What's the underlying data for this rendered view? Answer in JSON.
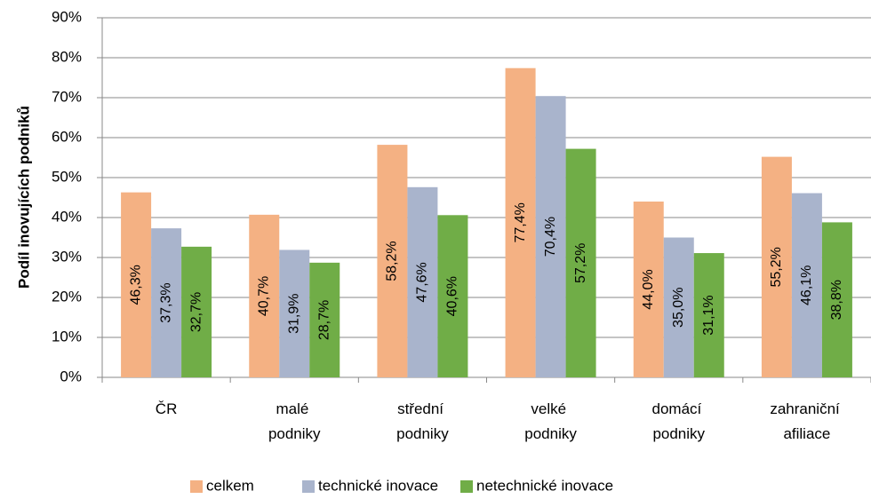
{
  "chart_data": {
    "type": "bar",
    "y_label": "Podíl inovujících podniků",
    "categories": [
      "ČR",
      "malé podniky",
      "střední podniky",
      "velké podniky",
      "domácí podniky",
      "zahraniční afiliace"
    ],
    "series": [
      {
        "name": "celkem",
        "color": "#f4b183",
        "values": [
          46.3,
          40.7,
          58.2,
          77.4,
          44.0,
          55.2
        ],
        "value_labels": [
          "46,3%",
          "40,7%",
          "58,2%",
          "77,4%",
          "44,0%",
          "55,2%"
        ]
      },
      {
        "name": "technické inovace",
        "color": "#a9b4cc",
        "values": [
          37.3,
          31.9,
          47.6,
          70.4,
          35.0,
          46.1
        ],
        "value_labels": [
          "37,3%",
          "31,9%",
          "47,6%",
          "70,4%",
          "35,0%",
          "46,1%"
        ]
      },
      {
        "name": "netechnické inovace",
        "color": "#70ad47",
        "values": [
          32.7,
          28.7,
          40.6,
          57.2,
          31.1,
          38.8
        ],
        "value_labels": [
          "32,7%",
          "28,7%",
          "40,6%",
          "57,2%",
          "31,1%",
          "38,8%"
        ]
      }
    ],
    "ylim": [
      0,
      90
    ],
    "yticks": [
      {
        "value": 0,
        "label": "0%"
      },
      {
        "value": 10,
        "label": "10%"
      },
      {
        "value": 20,
        "label": "20%"
      },
      {
        "value": 30,
        "label": "30%"
      },
      {
        "value": 40,
        "label": "40%"
      },
      {
        "value": 50,
        "label": "50%"
      },
      {
        "value": 60,
        "label": "60%"
      },
      {
        "value": 70,
        "label": "70%"
      },
      {
        "value": 80,
        "label": "80%"
      },
      {
        "value": 90,
        "label": "90%"
      }
    ],
    "grid": true,
    "legend": "bottom"
  }
}
